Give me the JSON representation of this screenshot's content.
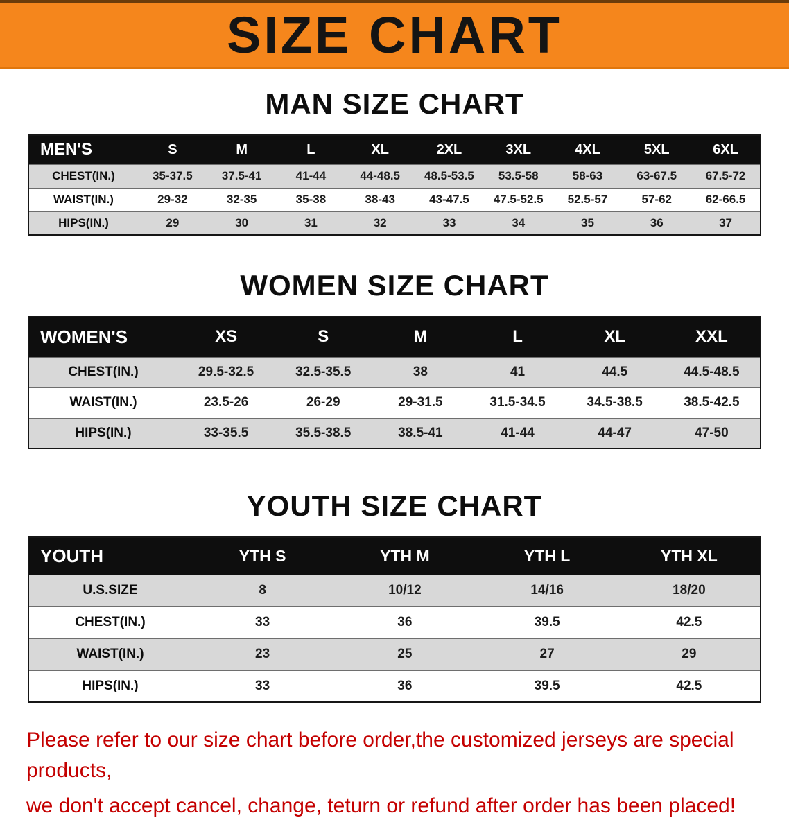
{
  "banner": {
    "title": "SIZE CHART"
  },
  "colors": {
    "banner_bg": "#f5861c",
    "table_header_bg": "#0e0e0e",
    "row_alt_bg": "#d8d8d8",
    "footer_text": "#c40000"
  },
  "sections": {
    "men": {
      "heading": "MAN SIZE CHART",
      "table": {
        "headers": [
          "MEN'S",
          "S",
          "M",
          "L",
          "XL",
          "2XL",
          "3XL",
          "4XL",
          "5XL",
          "6XL"
        ],
        "rows": [
          [
            "CHEST(IN.)",
            "35-37.5",
            "37.5-41",
            "41-44",
            "44-48.5",
            "48.5-53.5",
            "53.5-58",
            "58-63",
            "63-67.5",
            "67.5-72"
          ],
          [
            "WAIST(IN.)",
            "29-32",
            "32-35",
            "35-38",
            "38-43",
            "43-47.5",
            "47.5-52.5",
            "52.5-57",
            "57-62",
            "62-66.5"
          ],
          [
            "HIPS(IN.)",
            "29",
            "30",
            "31",
            "32",
            "33",
            "34",
            "35",
            "36",
            "37"
          ]
        ]
      }
    },
    "women": {
      "heading": "WOMEN SIZE CHART",
      "table": {
        "headers": [
          "WOMEN'S",
          "XS",
          "S",
          "M",
          "L",
          "XL",
          "XXL"
        ],
        "rows": [
          [
            "CHEST(IN.)",
            "29.5-32.5",
            "32.5-35.5",
            "38",
            "41",
            "44.5",
            "44.5-48.5"
          ],
          [
            "WAIST(IN.)",
            "23.5-26",
            "26-29",
            "29-31.5",
            "31.5-34.5",
            "34.5-38.5",
            "38.5-42.5"
          ],
          [
            "HIPS(IN.)",
            "33-35.5",
            "35.5-38.5",
            "38.5-41",
            "41-44",
            "44-47",
            "47-50"
          ]
        ]
      }
    },
    "youth": {
      "heading": "YOUTH SIZE CHART",
      "table": {
        "headers": [
          "YOUTH",
          "YTH S",
          "YTH M",
          "YTH L",
          "YTH XL"
        ],
        "rows": [
          [
            "U.S.SIZE",
            "8",
            "10/12",
            "14/16",
            "18/20"
          ],
          [
            "CHEST(IN.)",
            "33",
            "36",
            "39.5",
            "42.5"
          ],
          [
            "WAIST(IN.)",
            "23",
            "25",
            "27",
            "29"
          ],
          [
            "HIPS(IN.)",
            "33",
            "36",
            "39.5",
            "42.5"
          ]
        ]
      }
    }
  },
  "footer": {
    "line1": "Please refer to our size chart before order,the customized jerseys are special products,",
    "line2": "we don't accept cancel, change, teturn or refund after order has been placed!"
  }
}
